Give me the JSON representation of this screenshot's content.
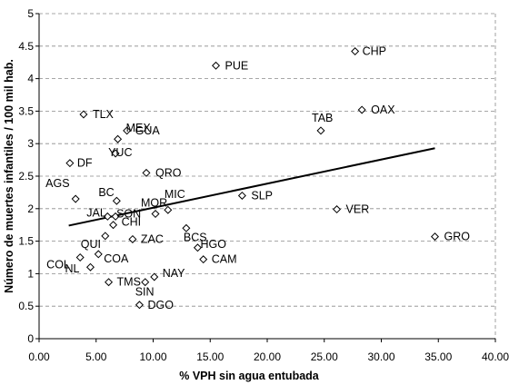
{
  "chart_data": {
    "type": "scatter",
    "title": "",
    "xlabel": "% VPH sin agua entubada",
    "ylabel": "Número de muertes infantiles / 100 mil hab.",
    "xlim": [
      0,
      40
    ],
    "ylim": [
      0,
      5
    ],
    "x_tick_labels": [
      "0.00",
      "5.00",
      "10.00",
      "15.00",
      "20.00",
      "25.00",
      "30.00",
      "35.00",
      "40.00"
    ],
    "y_tick_labels": [
      "0",
      "0.5",
      "1",
      "1.5",
      "2",
      "2.5",
      "3",
      "3.5",
      "4",
      "4.5",
      "5"
    ],
    "grid": true,
    "marker": "diamond-open",
    "trendline": {
      "type": "linear",
      "x": [
        2.6,
        34.7
      ],
      "y": [
        1.74,
        2.93
      ]
    },
    "points": [
      {
        "label": "CHP",
        "x": 27.7,
        "y": 4.42
      },
      {
        "label": "PUE",
        "x": 15.5,
        "y": 4.2
      },
      {
        "label": "TLX",
        "x": 3.9,
        "y": 3.45
      },
      {
        "label": "OAX",
        "x": 28.3,
        "y": 3.52
      },
      {
        "label": "TAB",
        "x": 24.7,
        "y": 3.2
      },
      {
        "label": "GUA",
        "x": 7.7,
        "y": 3.2
      },
      {
        "label": "MEX",
        "x": 6.9,
        "y": 3.07
      },
      {
        "label": "YUC",
        "x": 6.7,
        "y": 2.85
      },
      {
        "label": "DF",
        "x": 2.7,
        "y": 2.7
      },
      {
        "label": "QRO",
        "x": 9.4,
        "y": 2.55
      },
      {
        "label": "AGS",
        "x": 3.2,
        "y": 2.15
      },
      {
        "label": "BC",
        "x": 6.8,
        "y": 2.12
      },
      {
        "label": "SLP",
        "x": 17.8,
        "y": 2.2
      },
      {
        "label": "MOR",
        "x": 10.2,
        "y": 1.92
      },
      {
        "label": "MIC",
        "x": 11.3,
        "y": 1.98
      },
      {
        "label": "VER",
        "x": 26.1,
        "y": 1.99
      },
      {
        "label": "JAL",
        "x": 6.0,
        "y": 1.88
      },
      {
        "label": "SON",
        "x": 6.7,
        "y": 1.88
      },
      {
        "label": "CHI",
        "x": 6.5,
        "y": 1.75
      },
      {
        "label": "BCS",
        "x": 12.9,
        "y": 1.7
      },
      {
        "label": "ZAC",
        "x": 8.2,
        "y": 1.53
      },
      {
        "label": "QUI",
        "x": 5.8,
        "y": 1.58
      },
      {
        "label": "HGO",
        "x": 13.9,
        "y": 1.4
      },
      {
        "label": "GRO",
        "x": 34.7,
        "y": 1.57
      },
      {
        "label": "CAM",
        "x": 14.4,
        "y": 1.22
      },
      {
        "label": "COA",
        "x": 5.2,
        "y": 1.3
      },
      {
        "label": "COL",
        "x": 3.6,
        "y": 1.25
      },
      {
        "label": "NL",
        "x": 4.5,
        "y": 1.1
      },
      {
        "label": "TMS",
        "x": 6.1,
        "y": 0.87
      },
      {
        "label": "NAY",
        "x": 10.1,
        "y": 0.95
      },
      {
        "label": "SIN",
        "x": 9.3,
        "y": 0.87
      },
      {
        "label": "DGO",
        "x": 8.8,
        "y": 0.52
      }
    ]
  }
}
